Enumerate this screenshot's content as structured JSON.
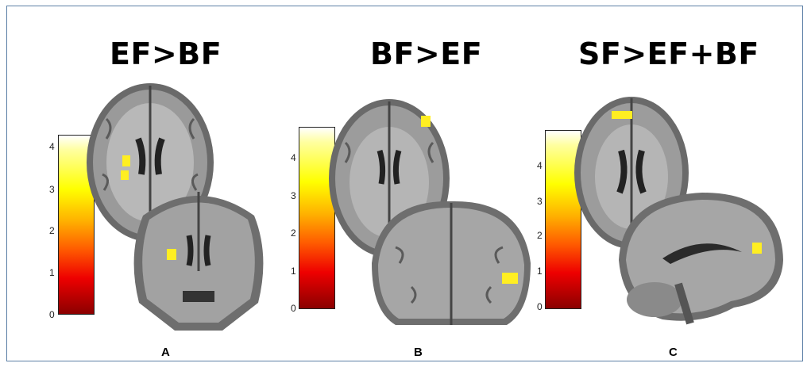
{
  "panels": [
    {
      "title": "EF>BF",
      "label": "A",
      "colorbar_ticks": [
        "4",
        "3",
        "2",
        "1",
        "0"
      ]
    },
    {
      "title": "BF>EF",
      "label": "B",
      "colorbar_ticks": [
        "4",
        "3",
        "2",
        "1",
        "0"
      ]
    },
    {
      "title": "SF>EF+BF",
      "label": "C",
      "colorbar_ticks": [
        "4",
        "3",
        "2",
        "1",
        "0"
      ]
    }
  ],
  "colors": {
    "frame": "#5b7fa6",
    "activation": "#ffee22",
    "brain_gray": "#8a8a8a"
  }
}
